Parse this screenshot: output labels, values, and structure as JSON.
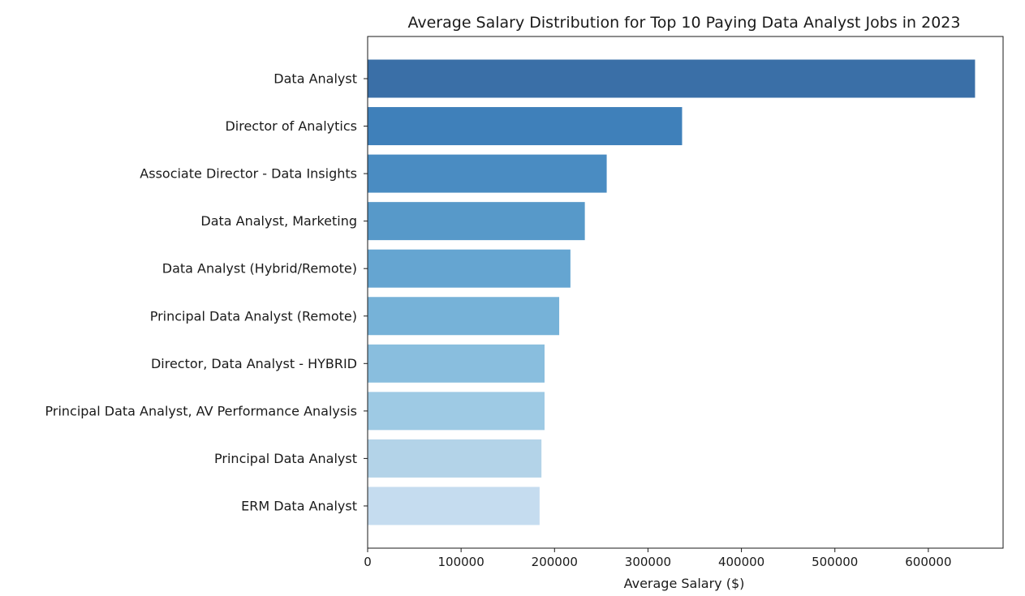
{
  "chart_data": {
    "type": "bar",
    "orientation": "horizontal",
    "title": "Average Salary Distribution for Top 10 Paying Data Analyst Jobs in 2023",
    "xlabel": "Average Salary ($)",
    "ylabel": "",
    "xlim": [
      0,
      680000
    ],
    "x_ticks": [
      0,
      100000,
      200000,
      300000,
      400000,
      500000,
      600000
    ],
    "grid": false,
    "legend": "none",
    "colormap": "Blues (light to dark, bottom to top)",
    "categories": [
      "Data Analyst",
      "Director of Analytics",
      "Associate Director - Data Insights",
      "Data Analyst, Marketing",
      "Data Analyst (Hybrid/Remote)",
      "Principal Data Analyst (Remote)",
      "Director, Data Analyst - HYBRID",
      "Principal Data Analyst, AV Performance Analysis",
      "Principal Data Analyst",
      "ERM Data Analyst"
    ],
    "values": [
      650000,
      336500,
      255829,
      232423,
      217000,
      205000,
      189309,
      189309,
      186000,
      184000
    ],
    "colors": [
      "#3a6fa7",
      "#3f80ba",
      "#4a8cc2",
      "#5799c9",
      "#65a5d1",
      "#76b2d8",
      "#89bede",
      "#9ecae4",
      "#b3d3e8",
      "#c5dcef"
    ]
  }
}
